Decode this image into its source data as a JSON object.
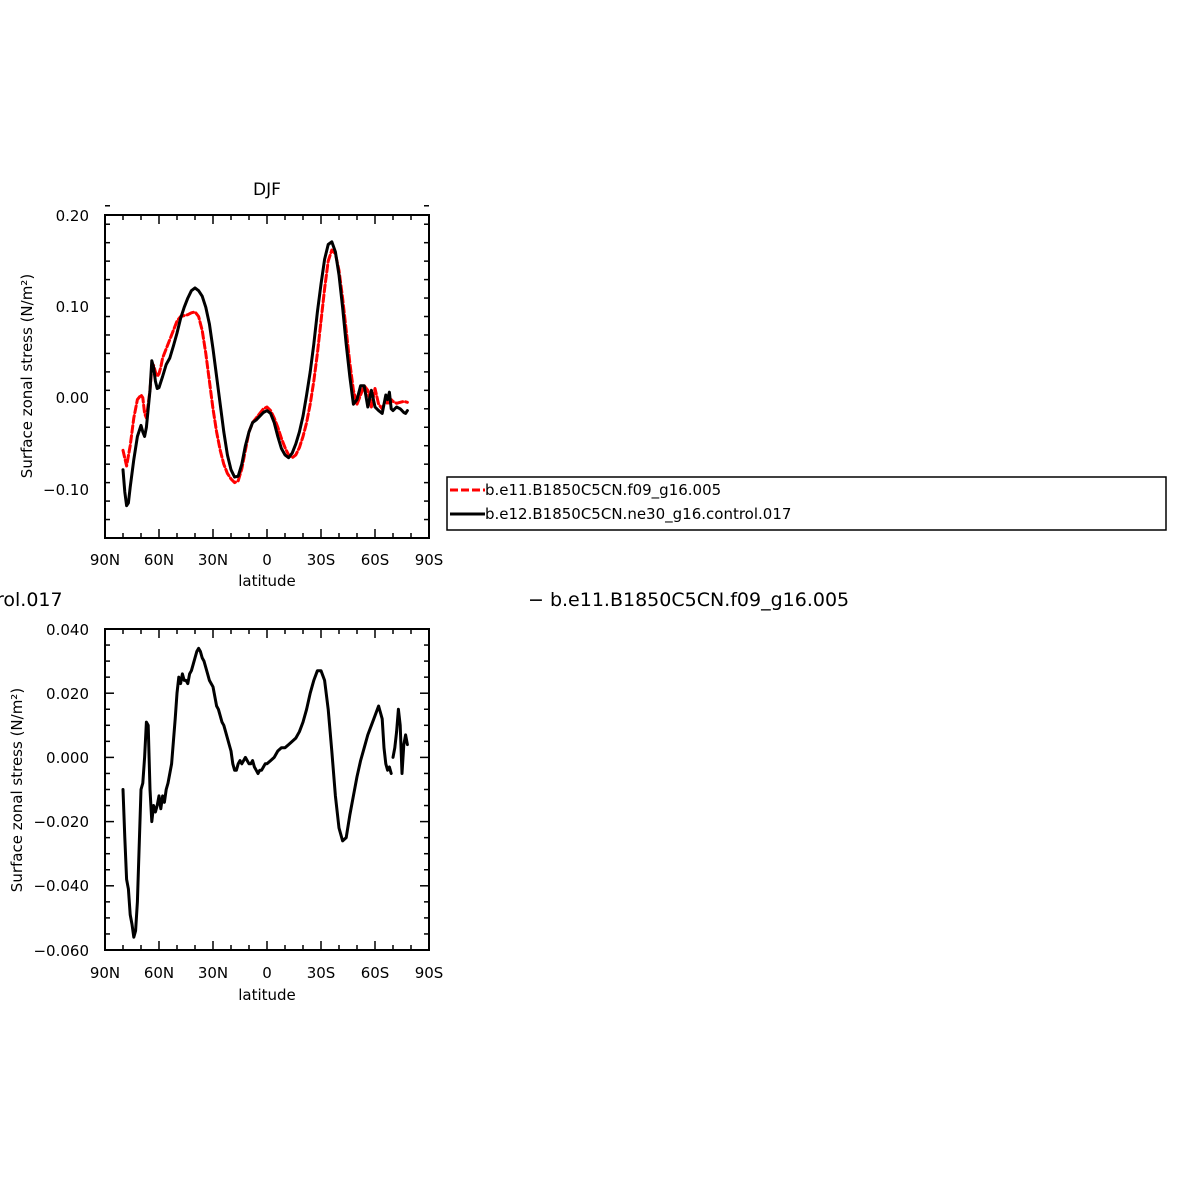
{
  "chart_data": [
    {
      "type": "line",
      "title": "DJF",
      "xlabel": "latitude",
      "ylabel": "Surface zonal stress (N/m²)",
      "xlim": [
        90,
        -90
      ],
      "ylim": [
        -0.15,
        0.2
      ],
      "x_ticks": [
        "90N",
        "60N",
        "30N",
        "0",
        "30S",
        "60S",
        "90S"
      ],
      "y_ticks": [
        "0.20",
        "0.10",
        "0.00",
        "−0.10"
      ],
      "legend_position": "right",
      "series": [
        {
          "name": "b.e11.B1850C5CN.f09_g16.005",
          "color": "#ff0000",
          "dashed": true,
          "x": [
            80,
            78,
            76,
            74,
            72,
            70,
            69,
            68,
            67,
            66,
            65,
            64,
            63,
            62,
            61,
            60,
            59,
            58,
            56,
            54,
            52,
            50,
            48,
            46,
            44,
            42,
            40,
            38,
            36,
            34,
            32,
            30,
            28,
            26,
            24,
            22,
            20,
            18,
            16,
            14,
            12,
            10,
            8,
            6,
            4,
            2,
            0,
            -2,
            -4,
            -6,
            -8,
            -10,
            -12,
            -14,
            -16,
            -18,
            -20,
            -22,
            -24,
            -26,
            -28,
            -30,
            -32,
            -34,
            -36,
            -38,
            -40,
            -42,
            -44,
            -46,
            -48,
            -50,
            -52,
            -54,
            -56,
            -58,
            -60,
            -62,
            -64,
            -66,
            -67,
            -68,
            -69,
            -70,
            -72,
            -74,
            -76,
            -78
          ],
          "y": [
            -0.055,
            -0.072,
            -0.05,
            -0.02,
            0.0,
            0.005,
            0.002,
            -0.015,
            -0.02,
            -0.005,
            0.01,
            0.035,
            0.037,
            0.03,
            0.025,
            0.028,
            0.035,
            0.045,
            0.055,
            0.065,
            0.075,
            0.085,
            0.09,
            0.091,
            0.092,
            0.094,
            0.095,
            0.09,
            0.075,
            0.05,
            0.02,
            -0.01,
            -0.035,
            -0.055,
            -0.07,
            -0.08,
            -0.086,
            -0.09,
            -0.088,
            -0.075,
            -0.055,
            -0.035,
            -0.025,
            -0.02,
            -0.015,
            -0.01,
            -0.008,
            -0.012,
            -0.02,
            -0.03,
            -0.042,
            -0.052,
            -0.06,
            -0.063,
            -0.06,
            -0.052,
            -0.04,
            -0.025,
            -0.005,
            0.02,
            0.05,
            0.085,
            0.12,
            0.15,
            0.162,
            0.158,
            0.14,
            0.11,
            0.075,
            0.04,
            0.01,
            -0.005,
            0.005,
            0.015,
            0.01,
            -0.008,
            0.012,
            -0.005,
            -0.01,
            0.0,
            -0.005,
            -0.003,
            0.0,
            -0.002,
            -0.004,
            -0.003,
            -0.002,
            -0.003
          ]
        },
        {
          "name": "b.e12.B1850C5CN.ne30_g16.control.017",
          "color": "#000000",
          "dashed": false,
          "x": [
            80,
            79,
            78,
            77,
            76,
            74,
            72,
            70,
            69,
            68,
            67,
            66,
            65,
            64,
            63,
            62,
            61,
            60,
            58,
            56,
            54,
            52,
            50,
            48,
            46,
            44,
            42,
            40,
            38,
            36,
            34,
            32,
            30,
            28,
            26,
            24,
            22,
            20,
            18,
            16,
            14,
            12,
            10,
            8,
            6,
            4,
            2,
            0,
            -2,
            -4,
            -6,
            -8,
            -10,
            -12,
            -14,
            -16,
            -18,
            -20,
            -22,
            -24,
            -26,
            -28,
            -30,
            -32,
            -34,
            -36,
            -38,
            -40,
            -42,
            -44,
            -46,
            -48,
            -50,
            -52,
            -54,
            -56,
            -58,
            -60,
            -62,
            -64,
            -66,
            -67,
            -68,
            -69,
            -70,
            -72,
            -74,
            -75,
            -76,
            -77,
            -78
          ],
          "y": [
            -0.076,
            -0.1,
            -0.115,
            -0.112,
            -0.095,
            -0.065,
            -0.04,
            -0.028,
            -0.035,
            -0.04,
            -0.03,
            -0.01,
            0.01,
            0.042,
            0.035,
            0.02,
            0.012,
            0.013,
            0.025,
            0.038,
            0.045,
            0.058,
            0.072,
            0.088,
            0.1,
            0.11,
            0.118,
            0.121,
            0.118,
            0.112,
            0.1,
            0.082,
            0.055,
            0.025,
            -0.005,
            -0.035,
            -0.06,
            -0.076,
            -0.084,
            -0.083,
            -0.07,
            -0.05,
            -0.035,
            -0.025,
            -0.022,
            -0.018,
            -0.014,
            -0.012,
            -0.015,
            -0.025,
            -0.04,
            -0.053,
            -0.06,
            -0.063,
            -0.058,
            -0.048,
            -0.035,
            -0.018,
            0.005,
            0.03,
            0.06,
            0.095,
            0.125,
            0.152,
            0.168,
            0.171,
            0.16,
            0.135,
            0.1,
            0.06,
            0.025,
            -0.005,
            0.0,
            0.015,
            0.015,
            -0.008,
            0.01,
            -0.008,
            -0.012,
            -0.015,
            0.005,
            0.0,
            0.008,
            -0.01,
            -0.012,
            -0.008,
            -0.01,
            -0.012,
            -0.014,
            -0.015,
            -0.012
          ]
        }
      ]
    },
    {
      "type": "line",
      "title": "",
      "xlabel": "latitude",
      "ylabel": "Surface zonal stress (N/m²)",
      "xlim": [
        90,
        -90
      ],
      "ylim": [
        -0.06,
        0.04
      ],
      "x_ticks": [
        "90N",
        "60N",
        "30N",
        "0",
        "30S",
        "60S",
        "90S"
      ],
      "y_ticks": [
        "0.040",
        "0.020",
        "0.000",
        "−0.020",
        "−0.040",
        "−0.060"
      ],
      "header_left": "rol.017",
      "header_right": "− b.e11.B1850C5CN.f09_g16.005",
      "series": [
        {
          "color": "#000000",
          "dashed": false,
          "x": [
            80,
            79,
            78,
            77,
            76,
            75,
            74,
            73,
            72,
            70,
            69,
            68,
            67,
            66,
            65,
            64,
            63,
            62,
            61,
            60,
            59,
            58,
            57,
            56,
            55,
            54,
            53,
            52,
            51,
            50,
            49,
            48,
            47,
            46,
            45,
            44,
            43,
            42,
            41,
            40,
            39,
            38,
            37,
            36,
            35,
            34,
            33,
            32,
            31,
            30,
            29,
            28,
            27,
            26,
            25,
            24,
            23,
            22,
            21,
            20,
            19,
            18,
            17,
            16,
            15,
            14,
            13,
            12,
            11,
            10,
            9,
            8,
            7,
            6,
            5,
            4,
            3,
            2,
            1,
            0,
            -2,
            -4,
            -6,
            -8,
            -10,
            -12,
            -14,
            -16,
            -18,
            -20,
            -22,
            -24,
            -26,
            -28,
            -30,
            -32,
            -34,
            -36,
            -38,
            -40,
            -42,
            -44,
            -46,
            -48,
            -50,
            -52,
            -54,
            -56,
            -58,
            -60,
            -62,
            -64,
            -65,
            -66,
            -67,
            -68,
            -69,
            -70,
            -71,
            -72,
            -73,
            -74,
            -75,
            -76,
            -77,
            -78
          ],
          "y": [
            -0.01,
            -0.025,
            -0.038,
            -0.041,
            -0.049,
            -0.052,
            -0.056,
            -0.054,
            -0.045,
            -0.01,
            -0.008,
            0.0,
            0.011,
            0.01,
            -0.01,
            -0.02,
            -0.015,
            -0.017,
            -0.015,
            -0.012,
            -0.016,
            -0.012,
            -0.014,
            -0.01,
            -0.008,
            -0.005,
            -0.002,
            0.005,
            0.012,
            0.02,
            0.025,
            0.023,
            0.026,
            0.024,
            0.024,
            0.023,
            0.026,
            0.027,
            0.029,
            0.031,
            0.033,
            0.034,
            0.033,
            0.031,
            0.03,
            0.028,
            0.026,
            0.024,
            0.023,
            0.022,
            0.019,
            0.016,
            0.015,
            0.013,
            0.011,
            0.01,
            0.008,
            0.006,
            0.004,
            0.002,
            -0.002,
            -0.004,
            -0.004,
            -0.002,
            -0.001,
            -0.002,
            -0.001,
            0.0,
            -0.001,
            -0.002,
            -0.002,
            -0.001,
            -0.003,
            -0.004,
            -0.005,
            -0.004,
            -0.004,
            -0.003,
            -0.002,
            -0.002,
            -0.001,
            0.0,
            0.002,
            0.003,
            0.003,
            0.004,
            0.005,
            0.006,
            0.008,
            0.011,
            0.015,
            0.02,
            0.024,
            0.027,
            0.027,
            0.024,
            0.015,
            0.002,
            -0.012,
            -0.022,
            -0.026,
            -0.025,
            -0.018,
            -0.012,
            -0.006,
            -0.001,
            0.003,
            0.007,
            0.01,
            0.013,
            0.016,
            0.012,
            0.003,
            -0.002,
            -0.004,
            -0.003,
            -0.005,
            0.0,
            0.003,
            0.008,
            0.015,
            0.01,
            -0.005,
            0.004,
            0.007,
            0.004
          ],
          "segments": [
            [
              0,
              117
            ],
            [
              117,
              126
            ]
          ]
        }
      ]
    }
  ],
  "legend": {
    "entries": [
      {
        "label": "b.e11.B1850C5CN.f09_g16.005",
        "color": "#ff0000",
        "dashed": true
      },
      {
        "label": "b.e12.B1850C5CN.ne30_g16.control.017",
        "color": "#000000",
        "dashed": false
      }
    ]
  }
}
